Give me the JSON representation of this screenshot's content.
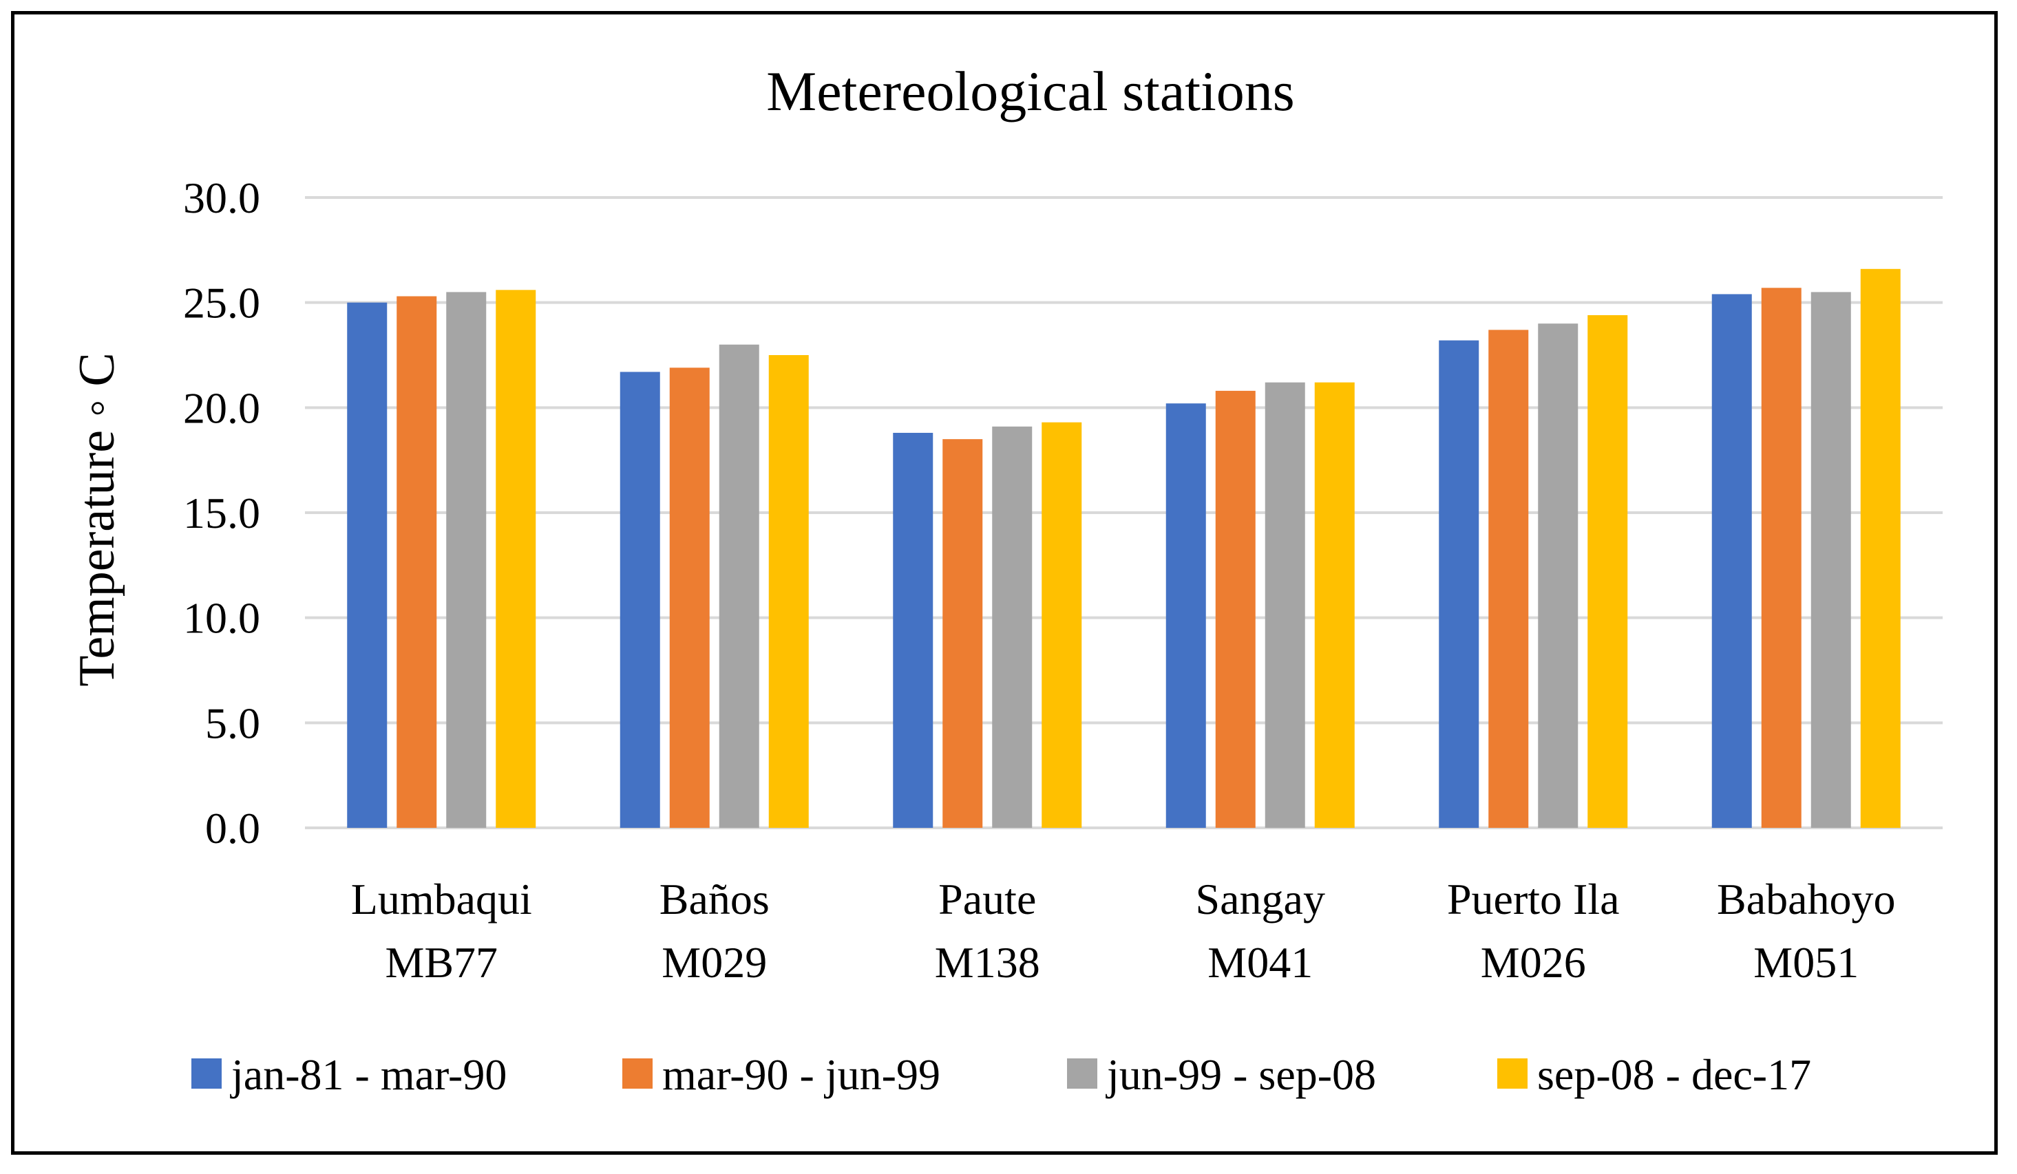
{
  "chart_data": {
    "type": "bar",
    "title": "Metereological stations",
    "xlabel": "",
    "ylabel": "Temperature ◦ C",
    "ylim": [
      0,
      30
    ],
    "yticks": [
      "0.0",
      "5.0",
      "10.0",
      "15.0",
      "20.0",
      "25.0",
      "30.0"
    ],
    "ytick_values": [
      0,
      5,
      10,
      15,
      20,
      25,
      30
    ],
    "grid": true,
    "legend_position": "bottom",
    "categories": [
      {
        "line1": "Lumbaqui",
        "line2": "MB77"
      },
      {
        "line1": "Baños",
        "line2": "M029"
      },
      {
        "line1": "Paute",
        "line2": "M138"
      },
      {
        "line1": "Sangay",
        "line2": "M041"
      },
      {
        "line1": "Puerto Ila",
        "line2": "M026"
      },
      {
        "line1": "Babahoyo",
        "line2": "M051"
      }
    ],
    "series": [
      {
        "name": "jan-81 - mar-90",
        "color": "#4472c4",
        "values": [
          25.0,
          21.7,
          18.8,
          20.2,
          23.2,
          25.4
        ]
      },
      {
        "name": "mar-90 - jun-99",
        "color": "#ed7d31",
        "values": [
          25.3,
          21.9,
          18.5,
          20.8,
          23.7,
          25.7
        ]
      },
      {
        "name": "jun-99 - sep-08",
        "color": "#a5a5a5",
        "values": [
          25.5,
          23.0,
          19.1,
          21.2,
          24.0,
          25.5
        ]
      },
      {
        "name": "sep-08 - dec-17",
        "color": "#ffc000",
        "values": [
          25.6,
          22.5,
          19.3,
          21.2,
          24.4,
          26.6
        ]
      }
    ]
  }
}
